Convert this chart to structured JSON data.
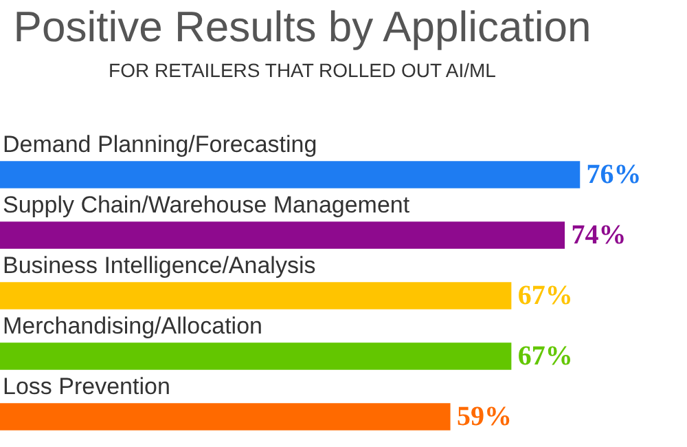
{
  "chart_data": {
    "type": "bar",
    "orientation": "horizontal",
    "title": "Positive Results by Application",
    "subtitle": "FOR RETAILERS THAT ROLLED OUT AI/ML",
    "categories": [
      "Demand Planning/Forecasting",
      "Supply Chain/Warehouse Management",
      "Business Intelligence/Analysis",
      "Merchandising/Allocation",
      "Loss Prevention"
    ],
    "values": [
      76,
      74,
      67,
      67,
      59
    ],
    "colors": [
      "#1e7cf2",
      "#8e0a8e",
      "#ffc400",
      "#63c600",
      "#ff6a00"
    ],
    "value_labels": [
      "76%",
      "74%",
      "67%",
      "67%",
      "59%"
    ],
    "legend": false
  }
}
